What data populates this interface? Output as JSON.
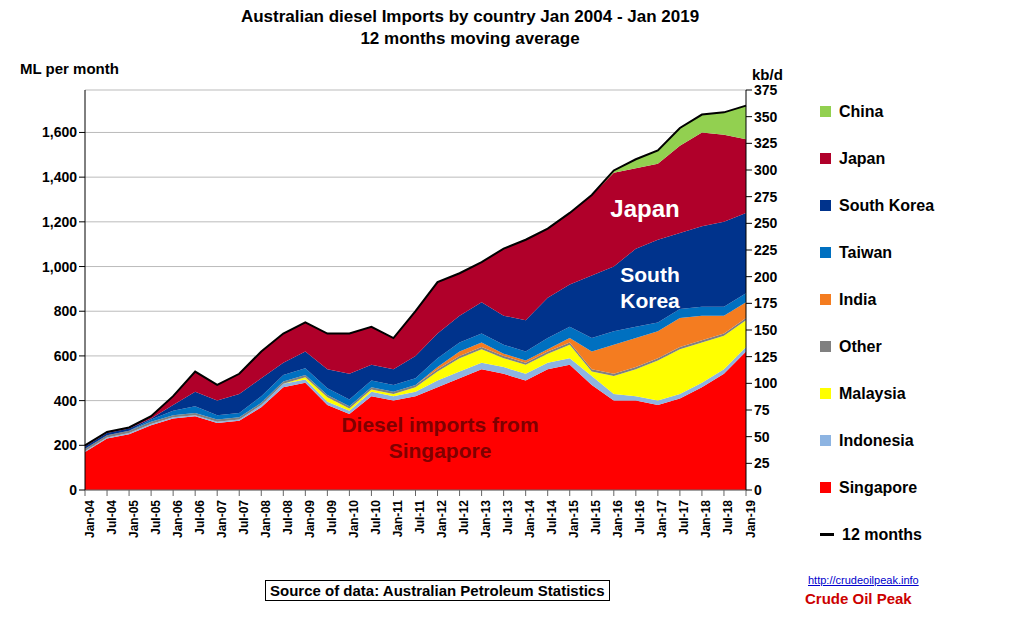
{
  "chart_data": {
    "type": "area",
    "title": "Australian diesel Imports by country Jan 2004 - Jan 2019",
    "subtitle": "12 months moving average",
    "y_label": "ML per month",
    "y2_label": "kb/d",
    "stacked": true,
    "grid": true,
    "legend": "right",
    "categories": [
      "Jan-04",
      "Jul-04",
      "Jan-05",
      "Jul-05",
      "Jan-06",
      "Jul-06",
      "Jan-07",
      "Jul-07",
      "Jan-08",
      "Jul-08",
      "Jan-09",
      "Jul-09",
      "Jan-10",
      "Jul-10",
      "Jan-11",
      "Jul-11",
      "Jan-12",
      "Jul-12",
      "Jan-13",
      "Jul-13",
      "Jan-14",
      "Jul-14",
      "Jan-15",
      "Jul-15",
      "Jan-16",
      "Jul-16",
      "Jan-17",
      "Jul-17",
      "Jan-18",
      "Jul-18",
      "Jan-19"
    ],
    "ylim": [
      0,
      1790
    ],
    "yticks": [
      0,
      200,
      400,
      600,
      800,
      {
        "value": 1000,
        "label": "1,000"
      },
      {
        "value": 1200,
        "label": "1,200"
      },
      {
        "value": 1400,
        "label": "1,400"
      },
      {
        "value": 1600,
        "label": "1,600"
      }
    ],
    "y2lim": [
      0,
      375
    ],
    "y2ticks": [
      0,
      25,
      50,
      75,
      100,
      125,
      150,
      175,
      200,
      225,
      250,
      275,
      300,
      325,
      350,
      375
    ],
    "series": [
      {
        "name": "China",
        "color": "#92d050",
        "values": [
          0,
          0,
          0,
          0,
          0,
          0,
          0,
          0,
          0,
          0,
          0,
          0,
          0,
          0,
          0,
          0,
          0,
          0,
          0,
          0,
          0,
          0,
          0,
          0,
          10,
          40,
          60,
          80,
          80,
          100,
          150
        ]
      },
      {
        "name": "Japan",
        "color": "#b0002a",
        "values": [
          5,
          5,
          5,
          10,
          40,
          90,
          70,
          90,
          120,
          130,
          130,
          160,
          180,
          170,
          140,
          200,
          230,
          190,
          180,
          300,
          360,
          310,
          320,
          360,
          420,
          360,
          340,
          390,
          420,
          390,
          330
        ]
      },
      {
        "name": "South Korea",
        "color": "#00338c",
        "values": [
          10,
          10,
          10,
          5,
          25,
          65,
          65,
          85,
          80,
          55,
          75,
          85,
          115,
          70,
          70,
          100,
          110,
          120,
          140,
          130,
          140,
          180,
          190,
          280,
          290,
          350,
          370,
          340,
          360,
          380,
          360
        ]
      },
      {
        "name": "Taiwan",
        "color": "#0070c0",
        "values": [
          0,
          0,
          0,
          10,
          20,
          30,
          20,
          20,
          30,
          30,
          30,
          30,
          30,
          30,
          30,
          30,
          40,
          40,
          40,
          40,
          40,
          50,
          50,
          60,
          60,
          50,
          40,
          40,
          40,
          40,
          40
        ]
      },
      {
        "name": "India",
        "color": "#f47c20",
        "values": [
          0,
          0,
          0,
          0,
          0,
          0,
          0,
          0,
          0,
          0,
          0,
          0,
          0,
          0,
          0,
          0,
          10,
          20,
          20,
          10,
          10,
          10,
          20,
          80,
          130,
          130,
          120,
          130,
          110,
          80,
          70
        ]
      },
      {
        "name": "Other",
        "color": "#808080",
        "values": [
          10,
          10,
          10,
          10,
          10,
          10,
          10,
          10,
          10,
          10,
          10,
          10,
          10,
          10,
          10,
          10,
          10,
          10,
          10,
          10,
          10,
          10,
          10,
          10,
          10,
          10,
          10,
          10,
          10,
          10,
          10
        ]
      },
      {
        "name": "Malaysia",
        "color": "#ffff00",
        "values": [
          0,
          0,
          0,
          0,
          0,
          0,
          0,
          0,
          0,
          0,
          10,
          20,
          10,
          10,
          10,
          20,
          40,
          60,
          60,
          40,
          40,
          40,
          60,
          20,
          80,
          120,
          180,
          200,
          180,
          150,
          120
        ]
      },
      {
        "name": "Indonesia",
        "color": "#8db4e2",
        "values": [
          5,
          5,
          5,
          5,
          5,
          5,
          5,
          5,
          10,
          15,
          15,
          15,
          15,
          20,
          20,
          20,
          30,
          30,
          30,
          30,
          30,
          30,
          30,
          40,
          30,
          20,
          20,
          20,
          20,
          20,
          20
        ]
      },
      {
        "name": "Singapore",
        "color": "#ff0000",
        "values": [
          170,
          230,
          250,
          290,
          320,
          330,
          300,
          310,
          370,
          460,
          480,
          380,
          340,
          420,
          400,
          420,
          460,
          500,
          540,
          520,
          490,
          540,
          560,
          470,
          400,
          400,
          380,
          410,
          460,
          520,
          620
        ]
      },
      {
        "name": "12 months",
        "type": "line",
        "color": "#000000",
        "values": [
          200,
          260,
          280,
          330,
          420,
          530,
          470,
          520,
          620,
          700,
          750,
          700,
          700,
          730,
          680,
          800,
          930,
          970,
          1020,
          1080,
          1120,
          1170,
          1240,
          1320,
          1430,
          1480,
          1520,
          1620,
          1680,
          1690,
          1720
        ]
      }
    ],
    "annotations": [
      {
        "text": "Japan",
        "color": "#ffffff"
      },
      {
        "text": "South Korea",
        "color": "#ffffff"
      },
      {
        "text": "Diesel imports from Singapore",
        "color": "#7f0000"
      }
    ],
    "source": "Source of data: Australian Petroleum Statistics",
    "website": "http://crudeoilpeak.info",
    "brand": "Crude Oil Peak"
  }
}
